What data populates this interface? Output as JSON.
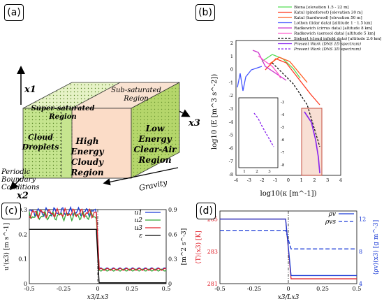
{
  "panel_labels": {
    "a": "(a)",
    "b": "(b)",
    "c": "(c)",
    "d": "(d)"
  },
  "schematic": {
    "axis_x1": "x1",
    "axis_x2": "x2",
    "axis_x3": "x3",
    "region_cloud_droplets": [
      "Cloud",
      "Droplets"
    ],
    "region_supersaturated": [
      "Super-saturated",
      "Region"
    ],
    "region_high_energy": [
      "High",
      "Energy",
      "Cloudy",
      "Region"
    ],
    "region_subsaturated": [
      "Sub-saturated",
      "Region"
    ],
    "region_low_energy": [
      "Low",
      "Energy",
      "Clear-Air",
      "Region"
    ],
    "boundary_note": [
      "Periodic",
      "Boundary",
      "Conditions"
    ],
    "gravity_label": "Gravity",
    "colors": {
      "green_front": "#c6e58f",
      "green_top": "#dbefac",
      "peach_front": "#fbdcc7",
      "peach_top": "#f9e4d6",
      "side": "#b5d66b"
    }
  },
  "spectrum": {
    "legend": [
      {
        "label": "Biona [elevation 1.5 - 22 m]",
        "color": "#55dd55",
        "dash": false
      },
      {
        "label": "Katul (pineforest) [elevation 30 m]",
        "color": "#ff3b22",
        "dash": false
      },
      {
        "label": "Katul (hardwood) [elevation 50 m]",
        "color": "#ff5a1e",
        "dash": false
      },
      {
        "label": "Lothon (lidar data) [altitude 1 - 1.5 km]",
        "color": "#4455ff",
        "dash": false
      },
      {
        "label": "Radkewich (cirrus data) [altitude 8 km]",
        "color": "#cc33cc",
        "dash": false
      },
      {
        "label": "Radkewich (aerosol data) [altitude 5 km]",
        "color": "#ff55cc",
        "dash": false
      },
      {
        "label": "Siebert (cloud infield data) [altitude 2.6 km]",
        "color": "#000000",
        "dash": true
      },
      {
        "label": "Present Work (DNS 1D spectrum)",
        "color": "#8822ee",
        "dash": false
      },
      {
        "label": "Present Work (DNS 3D spectrum)",
        "color": "#8822ee",
        "dash": true
      }
    ],
    "ylabel": "log10 (E [m^3 s^-2])",
    "xlabel": "log10(κ [m^-1])",
    "xticks": [
      "-4",
      "-3",
      "-2",
      "-1",
      "0",
      "1",
      "2",
      "3",
      "4"
    ],
    "yticks": [
      "2",
      "1",
      "0",
      "-1",
      "-2",
      "-3",
      "-4",
      "-5",
      "-6",
      "-7",
      "-8"
    ],
    "inset_xticks": [
      "1",
      "2",
      "3"
    ],
    "inset_yticks": [
      "-3",
      "-4",
      "-5",
      "-6",
      "-7",
      "-8"
    ]
  },
  "chart_data": [
    {
      "type": "line",
      "title": "",
      "xlabel": "x3/Lx3",
      "ylabel": "u'(x3) [m s^-1]",
      "ylabel_right": "[m^2 s^-3]",
      "xlim": [
        -0.5,
        0.5
      ],
      "ylim": [
        0,
        0.3
      ],
      "ylim_right": [
        0,
        0.9
      ],
      "xticks": [
        "-0.5",
        "-0.25",
        "0",
        "0.25",
        "0.5"
      ],
      "yticks": [
        "0",
        "0.1",
        "0.2",
        "0.3"
      ],
      "yticks_right": [
        "0",
        "0.3",
        "0.6",
        "0.9"
      ],
      "legend": "top-right",
      "series": [
        {
          "name": "u1",
          "color": "#1a3ad6",
          "x": [
            -0.5,
            -0.01,
            0.01,
            0.5
          ],
          "y": [
            0.29,
            0.29,
            0.06,
            0.06
          ],
          "y_hi_start": 0.29
        },
        {
          "name": "u2",
          "color": "#35a635",
          "x": [
            -0.5,
            -0.01,
            0.01,
            0.5
          ],
          "y": [
            0.275,
            0.275,
            0.055,
            0.055
          ],
          "y_hi_start": 0.275
        },
        {
          "name": "u3",
          "color": "#e0202a",
          "x": [
            -0.5,
            -0.01,
            0.01,
            0.5
          ],
          "y": [
            0.285,
            0.285,
            0.058,
            0.058
          ],
          "y_hi_start": 0.285
        },
        {
          "name": "ε",
          "color": "#000000",
          "axis": "right",
          "x": [
            -0.5,
            -0.01,
            0.01,
            0.5
          ],
          "y": [
            0.66,
            0.66,
            0.01,
            0.01
          ]
        }
      ]
    },
    {
      "type": "line",
      "title": "",
      "xlabel": "x3/Lx3",
      "ylabel": "⟨T⟩(x3) [K]",
      "ylabel_right": "⟨ρv⟩(x3) [g m^-3]",
      "xlim": [
        -0.5,
        0.5
      ],
      "ylim": [
        281,
        285.5
      ],
      "ylim_right": [
        4,
        13
      ],
      "xticks": [
        "-0.5",
        "-0.25",
        "0",
        "0.25",
        "0.5"
      ],
      "yticks": [
        "281",
        "283",
        "285"
      ],
      "yticks_right": [
        "4",
        "8",
        "12"
      ],
      "legend": "top-right",
      "series": [
        {
          "name": "",
          "color": "#e0202a",
          "x": [
            -0.5,
            -0.02,
            0.02,
            0.5
          ],
          "y": [
            285.0,
            285.0,
            281.3,
            281.3
          ]
        },
        {
          "name": "ρv",
          "color": "#1a3ad6",
          "axis": "right",
          "x": [
            -0.5,
            -0.02,
            0.02,
            0.5
          ],
          "y": [
            12.0,
            12.0,
            5.0,
            5.0
          ]
        },
        {
          "name": "ρvs",
          "color": "#1a3ad6",
          "axis": "right",
          "dash": true,
          "x": [
            -0.5,
            -0.02,
            0.02,
            0.5
          ],
          "y": [
            10.6,
            10.6,
            8.3,
            8.3
          ]
        }
      ]
    }
  ]
}
